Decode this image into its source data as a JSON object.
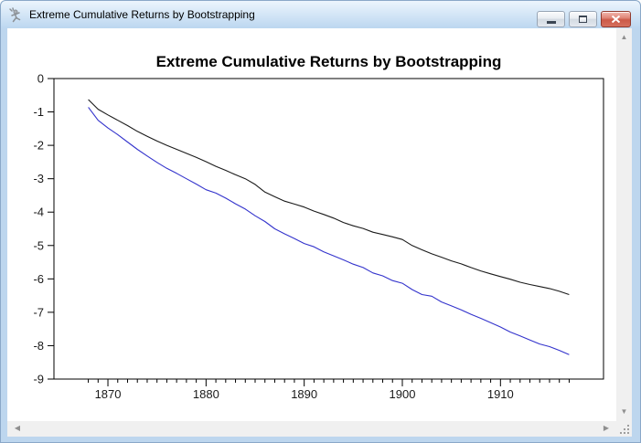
{
  "window": {
    "title": "Extreme Cumulative Returns by Bootstrapping",
    "icons": {
      "app": "eviews-figure-icon",
      "minimize": "minimize-icon",
      "restore": "restore-icon",
      "close": "close-icon",
      "resize_grip": "resize-grip-icon"
    }
  },
  "scrollbars": {
    "up_glyph": "▲",
    "down_glyph": "▼",
    "left_glyph": "◀",
    "right_glyph": "▶"
  },
  "colors": {
    "titlebar_top": "#ecf5fd",
    "titlebar_bottom": "#bcd7f0",
    "window_border": "#bdd6ee",
    "close_button": "#cc5a48",
    "scrollbar_track": "#f0f0f0",
    "scrollbar_arrow": "#8f8f8f",
    "line_black": "#1a1a1a",
    "line_blue": "#3333cc"
  },
  "chart_data": {
    "type": "line",
    "title": "Extreme Cumulative Returns by Bootstrapping",
    "xlabel": "",
    "ylabel": "",
    "xlim": [
      1864.5,
      1920.5
    ],
    "ylim": [
      -9,
      0
    ],
    "grid": false,
    "legend": "none",
    "x_major_ticks": [
      1870,
      1880,
      1890,
      1900,
      1910
    ],
    "y_ticks": [
      0,
      -1,
      -2,
      -3,
      -4,
      -5,
      -6,
      -7,
      -8,
      -9
    ],
    "x": [
      1868,
      1869,
      1870,
      1871,
      1872,
      1873,
      1874,
      1875,
      1876,
      1877,
      1878,
      1879,
      1880,
      1881,
      1882,
      1883,
      1884,
      1885,
      1886,
      1887,
      1888,
      1889,
      1890,
      1891,
      1892,
      1893,
      1894,
      1895,
      1896,
      1897,
      1898,
      1899,
      1900,
      1901,
      1902,
      1903,
      1904,
      1905,
      1906,
      1907,
      1908,
      1909,
      1910,
      1911,
      1912,
      1913,
      1914,
      1915,
      1916,
      1917
    ],
    "series": [
      {
        "name": "upper-extreme-black",
        "color": "#1a1a1a",
        "values": [
          -0.63,
          -0.92,
          -1.09,
          -1.25,
          -1.41,
          -1.58,
          -1.73,
          -1.87,
          -2.0,
          -2.12,
          -2.24,
          -2.36,
          -2.49,
          -2.63,
          -2.75,
          -2.88,
          -3.0,
          -3.17,
          -3.4,
          -3.54,
          -3.67,
          -3.76,
          -3.85,
          -3.97,
          -4.07,
          -4.18,
          -4.31,
          -4.41,
          -4.49,
          -4.6,
          -4.67,
          -4.74,
          -4.82,
          -5.0,
          -5.13,
          -5.25,
          -5.35,
          -5.46,
          -5.55,
          -5.66,
          -5.76,
          -5.85,
          -5.93,
          -6.01,
          -6.1,
          -6.17,
          -6.23,
          -6.29,
          -6.37,
          -6.47
        ]
      },
      {
        "name": "lower-extreme-blue",
        "color": "#3333cc",
        "values": [
          -0.86,
          -1.25,
          -1.48,
          -1.68,
          -1.9,
          -2.12,
          -2.32,
          -2.51,
          -2.69,
          -2.84,
          -3.0,
          -3.16,
          -3.33,
          -3.43,
          -3.58,
          -3.75,
          -3.91,
          -4.11,
          -4.28,
          -4.5,
          -4.65,
          -4.79,
          -4.94,
          -5.04,
          -5.19,
          -5.31,
          -5.43,
          -5.56,
          -5.66,
          -5.82,
          -5.91,
          -6.05,
          -6.13,
          -6.32,
          -6.47,
          -6.52,
          -6.69,
          -6.81,
          -6.93,
          -7.06,
          -7.18,
          -7.31,
          -7.44,
          -7.59,
          -7.71,
          -7.83,
          -7.95,
          -8.03,
          -8.14,
          -8.27
        ]
      }
    ]
  }
}
